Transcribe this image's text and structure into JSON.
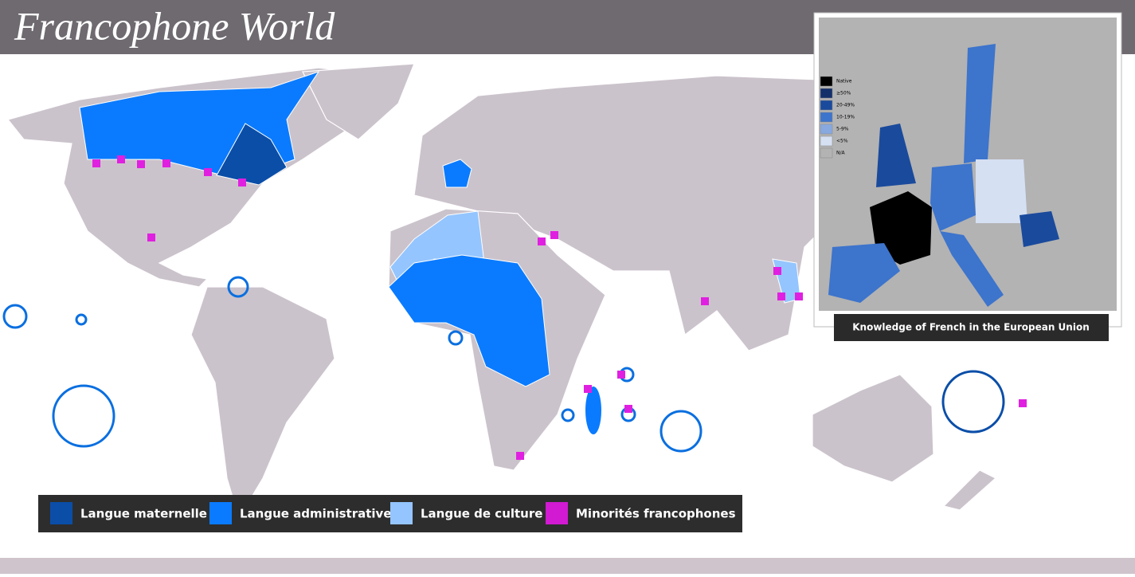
{
  "header": {
    "title": "Francophone World"
  },
  "legend": {
    "items": [
      {
        "label": "Langue maternelle",
        "color": "#0a4ea8"
      },
      {
        "label": "Langue administrative",
        "color": "#0a7bff"
      },
      {
        "label": "Langue de culture",
        "color": "#94c5ff"
      },
      {
        "label": "Minorités francophones",
        "color": "#d11ad1"
      }
    ]
  },
  "inset": {
    "title": "Knowledge of French in the European Union",
    "legend": [
      {
        "label": "Native",
        "color": "#000000"
      },
      {
        "label": "≥50%",
        "color": "#13306b"
      },
      {
        "label": "20-49%",
        "color": "#1a4a9c"
      },
      {
        "label": "10-19%",
        "color": "#3d74cc"
      },
      {
        "label": "5-9%",
        "color": "#87a9e0"
      },
      {
        "label": "<5%",
        "color": "#d5e0f3"
      },
      {
        "label": "N/A",
        "color": "#b3b3b3"
      }
    ]
  }
}
